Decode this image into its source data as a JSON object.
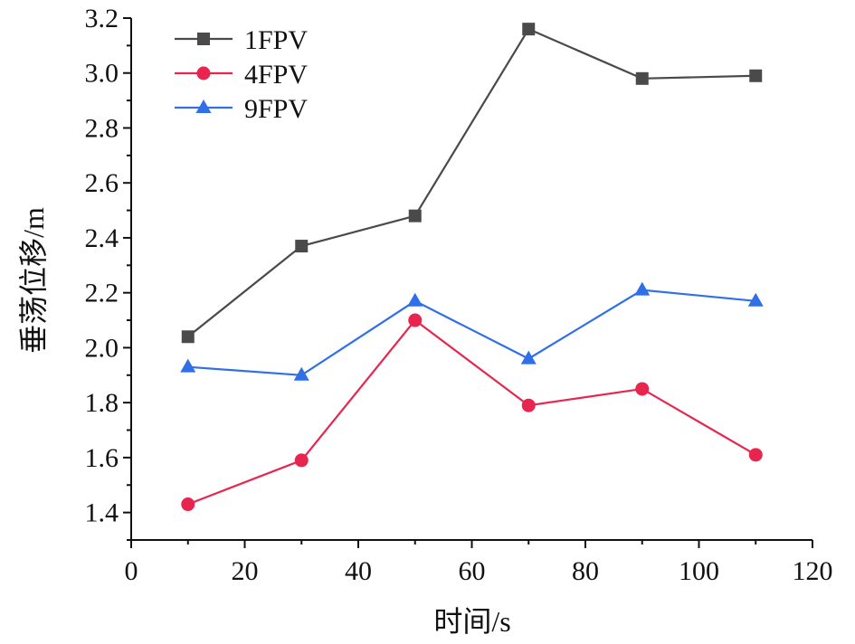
{
  "chart_data": {
    "type": "line",
    "title": "",
    "xlabel": "时间/s",
    "ylabel": "垂荡位移/m",
    "xlim": [
      0,
      120
    ],
    "ylim": [
      1.3,
      3.2
    ],
    "x": [
      10,
      30,
      50,
      70,
      90,
      110
    ],
    "xticks": [
      0,
      20,
      40,
      60,
      80,
      100,
      120
    ],
    "xtick_labels": [
      "0",
      "20",
      "40",
      "60",
      "80",
      "100",
      "120"
    ],
    "yticks": [
      1.4,
      1.6,
      1.8,
      2.0,
      2.2,
      2.4,
      2.6,
      2.8,
      3.0,
      3.2
    ],
    "ytick_labels": [
      "1.4",
      "1.6",
      "1.8",
      "2.0",
      "2.2",
      "2.4",
      "2.6",
      "2.8",
      "3.0",
      "3.2"
    ],
    "grid": false,
    "legend_position": "top-left",
    "series": [
      {
        "name": "1FPV",
        "marker": "square",
        "color": "#4a4a4a",
        "values": [
          2.04,
          2.37,
          2.48,
          3.16,
          2.98,
          2.99
        ]
      },
      {
        "name": "4FPV",
        "marker": "circle",
        "color": "#e8254f",
        "values": [
          1.43,
          1.59,
          2.1,
          1.79,
          1.85,
          1.61
        ]
      },
      {
        "name": "9FPV",
        "marker": "triangle",
        "color": "#2f6fe8",
        "values": [
          1.93,
          1.9,
          2.17,
          1.96,
          2.21,
          2.17
        ]
      }
    ]
  }
}
